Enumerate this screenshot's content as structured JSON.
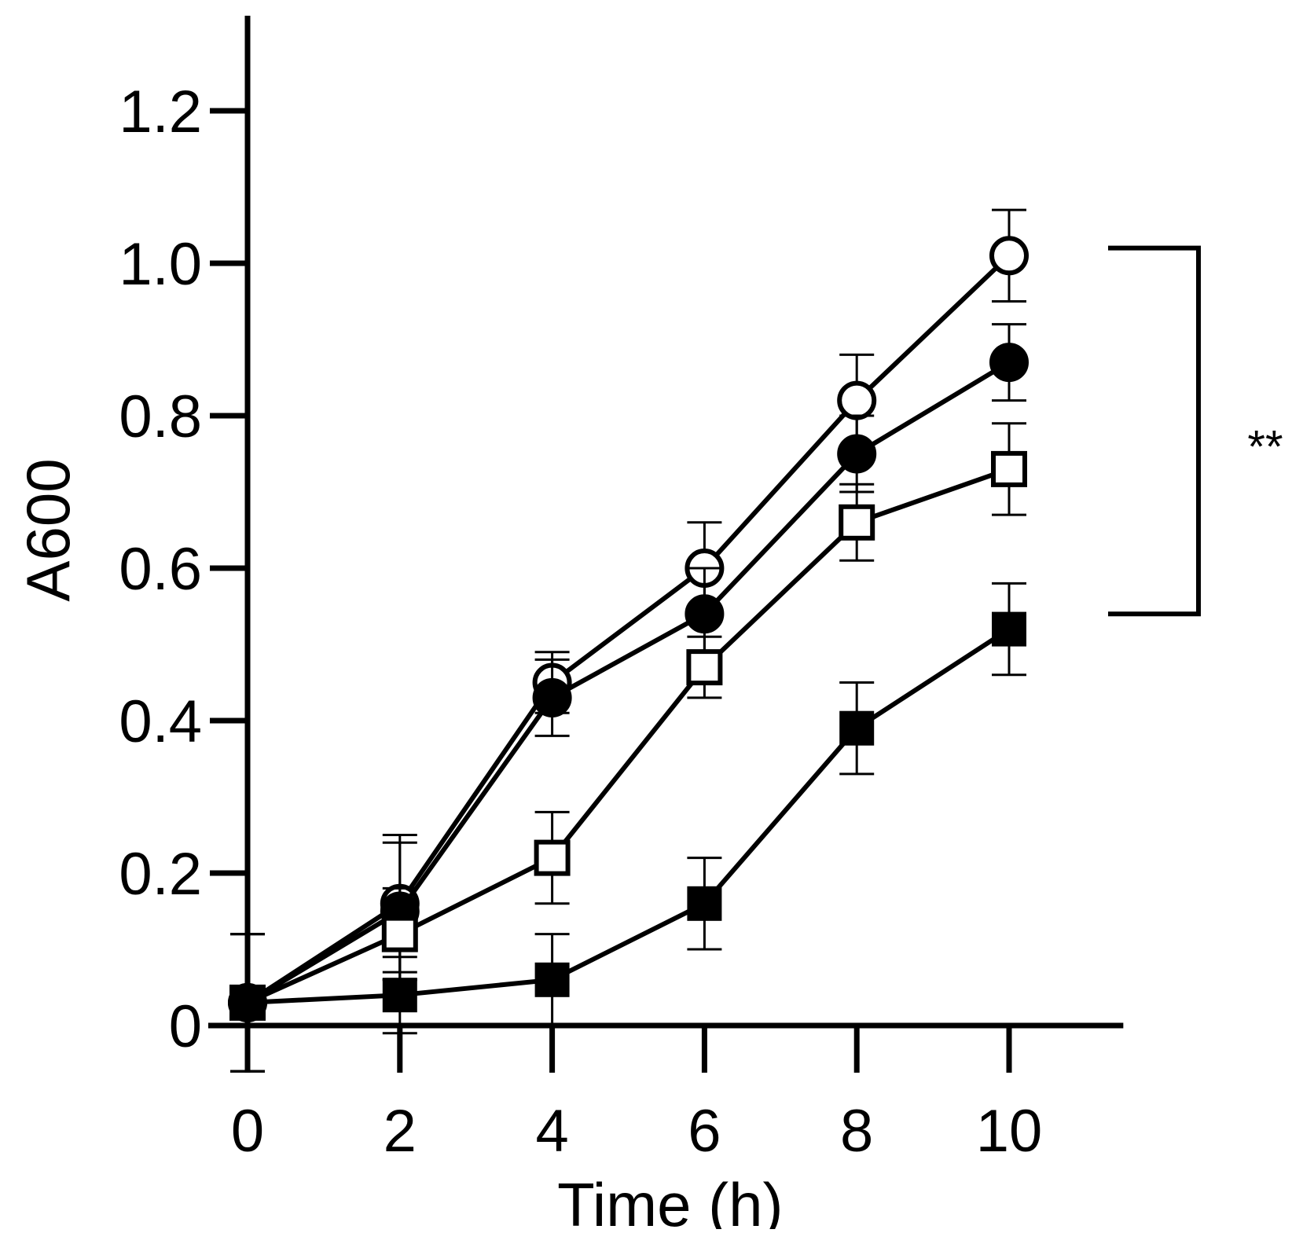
{
  "chart_data": {
    "type": "line",
    "title": "",
    "xlabel": "Time (h)",
    "ylabel": "A600",
    "x": [
      0,
      2,
      4,
      6,
      8,
      10
    ],
    "xlim": [
      0,
      11.5
    ],
    "ylim": [
      0,
      1.3
    ],
    "xticks": [
      0,
      2,
      4,
      6,
      8,
      10
    ],
    "xtick_labels": [
      "0",
      "2",
      "4",
      "6",
      "8",
      "10"
    ],
    "yticks": [
      0,
      0.2,
      0.4,
      0.6,
      0.8,
      1.0,
      1.2
    ],
    "ytick_labels": [
      "0",
      "0.2",
      "0.4",
      "0.6",
      "0.8",
      "1.0",
      "1.2"
    ],
    "grid": false,
    "legend": "none",
    "series": [
      {
        "name": "open circles",
        "marker": "circle-open",
        "values": [
          0.03,
          0.16,
          0.45,
          0.6,
          0.82,
          1.01
        ],
        "errors": [
          0.09,
          0.09,
          0.04,
          0.06,
          0.06,
          0.06
        ]
      },
      {
        "name": "filled circles",
        "marker": "circle-filled",
        "values": [
          0.03,
          0.15,
          0.43,
          0.54,
          0.75,
          0.87
        ],
        "errors": [
          0.09,
          0.09,
          0.05,
          0.06,
          0.05,
          0.05
        ]
      },
      {
        "name": "open squares",
        "marker": "square-open",
        "values": [
          0.03,
          0.12,
          0.22,
          0.47,
          0.66,
          0.73
        ],
        "errors": [
          0.09,
          0.06,
          0.06,
          0.04,
          0.05,
          0.06
        ]
      },
      {
        "name": "filled squares",
        "marker": "square-filled",
        "values": [
          0.03,
          0.04,
          0.06,
          0.16,
          0.39,
          0.52
        ],
        "errors": [
          0.09,
          0.05,
          0.06,
          0.06,
          0.06,
          0.06
        ]
      }
    ],
    "annotations": [
      {
        "text": "**",
        "type": "significance-bracket",
        "from": 1.02,
        "to": 0.54
      }
    ]
  }
}
